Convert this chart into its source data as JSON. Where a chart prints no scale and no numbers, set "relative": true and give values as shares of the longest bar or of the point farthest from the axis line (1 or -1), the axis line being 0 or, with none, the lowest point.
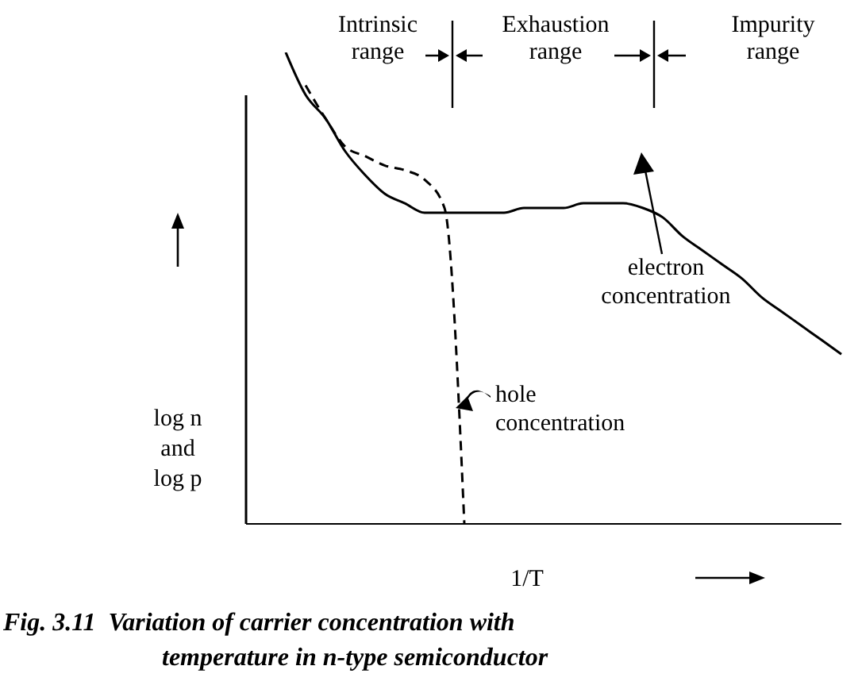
{
  "chart_data": {
    "type": "line",
    "relative": true,
    "marker": "none",
    "xlabel": "1/T",
    "ylabel": "log n and log p",
    "categories": [
      null,
      null,
      null,
      null,
      null,
      null,
      null,
      null,
      null,
      null,
      null,
      null,
      null,
      null,
      null,
      null,
      null,
      null,
      null,
      null,
      null,
      null,
      null,
      null,
      null,
      null,
      null,
      null,
      null,
      null,
      null
    ],
    "series": [
      {
        "name": "electron concentration",
        "color": "#000000",
        "line_style": "solid",
        "values": [
          null,
          null,
          1.0,
          0.91,
          0.86,
          0.79,
          0.74,
          0.7,
          0.68,
          0.66,
          0.66,
          0.66,
          0.66,
          0.66,
          0.67,
          0.67,
          0.67,
          0.68,
          0.68,
          0.68,
          0.67,
          0.65,
          0.61,
          0.58,
          0.55,
          0.52,
          0.48,
          0.45,
          0.42,
          0.39,
          0.36
        ]
      },
      {
        "name": "hole concentration",
        "color": "#000000",
        "line_style": "dashed",
        "values": [
          null,
          null,
          null,
          0.93,
          0.86,
          0.8,
          0.78,
          0.76,
          0.75,
          0.73,
          0.67,
          0,
          null,
          null,
          null,
          null,
          null,
          null,
          null,
          null,
          null,
          null,
          null,
          null,
          null,
          null,
          null,
          null,
          null,
          null,
          null
        ]
      }
    ],
    "annotations": [
      "Intrinsic range",
      "Exhaustion range",
      "Impurity range",
      "Fig. 3.11  Variation of carrier concentration with temperature in n-type semiconductor"
    ]
  }
}
